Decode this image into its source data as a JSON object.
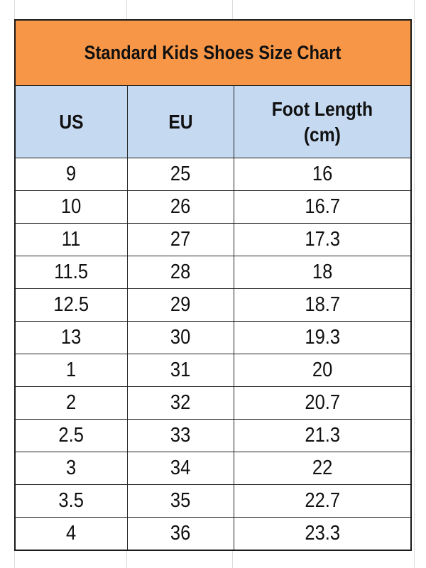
{
  "title": "Standard Kids Shoes Size Chart",
  "colors": {
    "title_bg": "#F79646",
    "header_bg": "#C5D9F1"
  },
  "headers": {
    "us": "US",
    "eu": "EU",
    "foot_length_line1": "Foot Length",
    "foot_length_line2": "(cm)"
  },
  "rows": [
    {
      "us": "9",
      "eu": "25",
      "cm": "16"
    },
    {
      "us": "10",
      "eu": "26",
      "cm": "16.7"
    },
    {
      "us": "11",
      "eu": "27",
      "cm": "17.3"
    },
    {
      "us": "11.5",
      "eu": "28",
      "cm": "18"
    },
    {
      "us": "12.5",
      "eu": "29",
      "cm": "18.7"
    },
    {
      "us": "13",
      "eu": "30",
      "cm": "19.3"
    },
    {
      "us": "1",
      "eu": "31",
      "cm": "20"
    },
    {
      "us": "2",
      "eu": "32",
      "cm": "20.7"
    },
    {
      "us": "2.5",
      "eu": "33",
      "cm": "21.3"
    },
    {
      "us": "3",
      "eu": "34",
      "cm": "22"
    },
    {
      "us": "3.5",
      "eu": "35",
      "cm": "22.7"
    },
    {
      "us": "4",
      "eu": "36",
      "cm": "23.3"
    }
  ]
}
